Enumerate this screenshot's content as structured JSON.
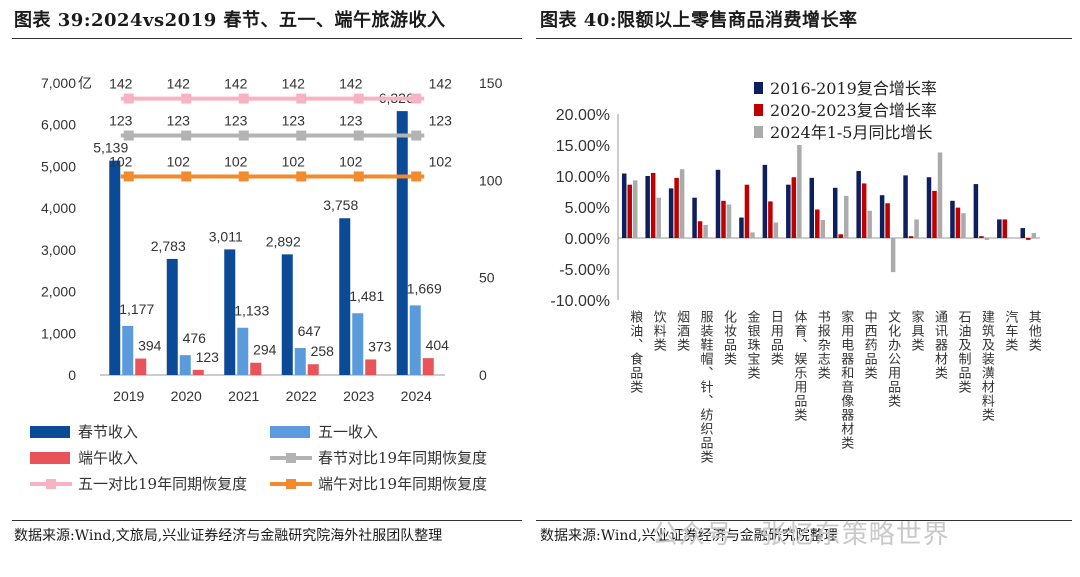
{
  "left_panel": {
    "title": "图表 39:2024vs2019 春节、五一、端午旅游收入",
    "source": "数据来源:Wind,文旅局,兴业证券经济与金融研究院海外社服团队整理"
  },
  "right_panel": {
    "title": "图表 40:限额以上零售商品消费增长率",
    "source": "数据来源:Wind,兴业证券经济与金融研究院整理"
  },
  "watermark": "公众号 · 张忆东策略世界",
  "chart_data": [
    {
      "type": "bar",
      "categories": [
        "2019",
        "2020",
        "2021",
        "2022",
        "2023",
        "2024"
      ],
      "y_unit_label": "亿",
      "ylim": [
        0,
        7000
      ],
      "yticks": [
        "0",
        "1,000",
        "2,000",
        "3,000",
        "4,000",
        "5,000",
        "6,000",
        "7,000"
      ],
      "y2lim": [
        0,
        150
      ],
      "y2ticks": [
        "0",
        "50",
        "100",
        "150"
      ],
      "series": [
        {
          "name": "春节收入",
          "kind": "bar",
          "axis": "left",
          "color": "#0b4a96",
          "values": [
            5139,
            2783,
            3011,
            2892,
            3758,
            6326
          ],
          "labels": [
            "5,139",
            "2,783",
            "3,011",
            "2,892",
            "3,758",
            "6,326"
          ]
        },
        {
          "name": "五一收入",
          "kind": "bar",
          "axis": "left",
          "color": "#5b9bdc",
          "values": [
            1177,
            476,
            1133,
            647,
            1481,
            1669
          ],
          "labels": [
            "1,177",
            "476",
            "1,133",
            "647",
            "1,481",
            "1,669"
          ]
        },
        {
          "name": "端午收入",
          "kind": "bar",
          "axis": "left",
          "color": "#e8545a",
          "values": [
            394,
            123,
            294,
            258,
            373,
            404
          ],
          "labels": [
            "394",
            "123",
            "294",
            "258",
            "373",
            "404"
          ]
        },
        {
          "name": "春节对比19年同期恢复度",
          "kind": "line",
          "axis": "right",
          "color": "#b3b3b3",
          "values": [
            123,
            123,
            123,
            123,
            123,
            123
          ],
          "labels": [
            "123",
            "123",
            "123",
            "123",
            "123",
            "123"
          ]
        },
        {
          "name": "五一对比19年同期恢复度",
          "kind": "line",
          "axis": "right",
          "color": "#f7b3c2",
          "values": [
            142,
            142,
            142,
            142,
            142,
            142
          ],
          "labels": [
            "142",
            "142",
            "142",
            "142",
            "142",
            "142"
          ]
        },
        {
          "name": "端午对比19年同期恢复度",
          "kind": "line",
          "axis": "right",
          "color": "#f28a2e",
          "values": [
            102,
            102,
            102,
            102,
            102,
            102
          ],
          "labels": [
            "102",
            "102",
            "102",
            "102",
            "102",
            "102"
          ]
        }
      ],
      "legend": "bottom"
    },
    {
      "type": "bar",
      "categories": [
        "粮油、食品类",
        "饮料类",
        "烟酒类",
        "服装鞋帽、针、纺织品类",
        "化妆品类",
        "金银珠宝类",
        "日用品类",
        "体育、娱乐用品类",
        "书报杂志类",
        "家用电器和音像器材类",
        "中西药品类",
        "文化办公用品类",
        "家具类",
        "通讯器材类",
        "石油及制品类",
        "建筑及装潢材料类",
        "汽车类",
        "其他类"
      ],
      "ylim": [
        -10,
        20
      ],
      "yticks": [
        "-10.00%",
        "-5.00%",
        "0.00%",
        "5.00%",
        "10.00%",
        "15.00%",
        "20.00%"
      ],
      "series": [
        {
          "name": "2016-2019复合增长率",
          "color": "#0d1f5c",
          "values": [
            10.4,
            10.0,
            8.0,
            6.5,
            11.0,
            3.3,
            11.8,
            8.6,
            9.7,
            8.1,
            10.8,
            6.9,
            10.1,
            9.8,
            6.0,
            8.7,
            3.0,
            1.6
          ]
        },
        {
          "name": "2020-2023复合增长率",
          "color": "#c00000",
          "values": [
            8.6,
            10.5,
            9.7,
            2.7,
            6.0,
            8.6,
            5.9,
            9.8,
            4.6,
            0.6,
            8.8,
            5.6,
            0.3,
            7.6,
            4.9,
            0.3,
            3.0,
            -0.3
          ]
        },
        {
          "name": "2024年1-5月同比增长",
          "color": "#ababab",
          "values": [
            9.3,
            6.5,
            11.1,
            2.1,
            5.4,
            0.9,
            2.5,
            15.0,
            2.9,
            6.8,
            4.4,
            -5.5,
            3.0,
            13.8,
            4.0,
            -0.3,
            -0.1,
            0.8
          ]
        }
      ],
      "legend": "top-right"
    }
  ]
}
